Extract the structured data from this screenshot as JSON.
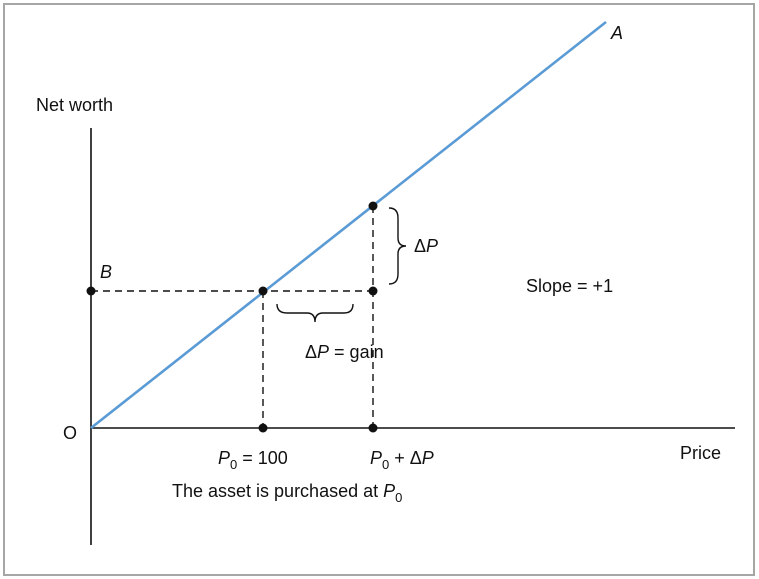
{
  "labels": {
    "y_axis": "Net worth",
    "x_axis": "Price",
    "origin": "O",
    "line_name": "A",
    "point_b": "B",
    "delta_p_vertical": "ΔP",
    "delta_p_gain": "ΔP = gain",
    "slope": "Slope = +1",
    "p0_label": "P0 = 100",
    "p0_delta_label": "P0 + ΔP",
    "caption": "The asset is purchased at P0"
  },
  "colors": {
    "line": "#5b9bd5",
    "border": "#a6a6a6",
    "ink": "#111111"
  }
}
